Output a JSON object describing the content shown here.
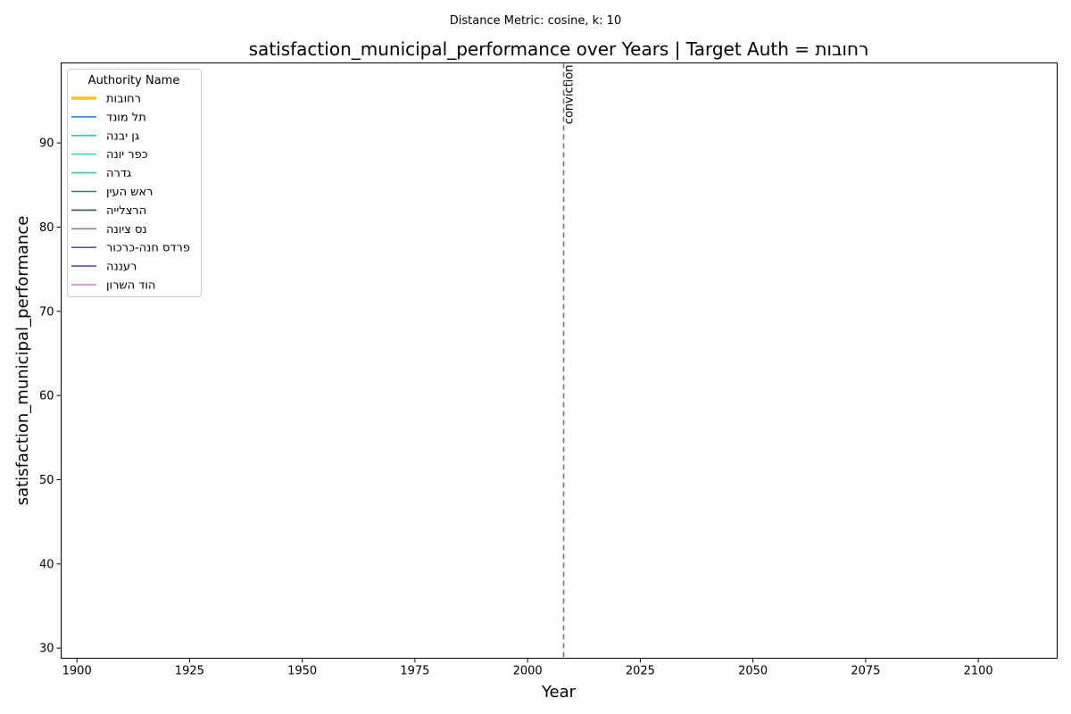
{
  "figure": {
    "suptitle": "Distance Metric: cosine, k: 10"
  },
  "chart_data": {
    "type": "line",
    "title": "satisfaction_municipal_performance over Years | Target Auth = רחובות",
    "xlabel": "Year",
    "ylabel": "satisfaction_municipal_performance",
    "xlim": [
      1896.5,
      2117.5
    ],
    "ylim": [
      28.8,
      99.5
    ],
    "xticks": [
      1900,
      1925,
      1950,
      1975,
      2000,
      2025,
      2050,
      2075,
      2100
    ],
    "yticks": [
      30,
      40,
      50,
      60,
      70,
      80,
      90
    ],
    "grid": false,
    "legend_title": "Authority Name",
    "legend_position": "top-left",
    "series": [
      {
        "name": "רחובות",
        "color": "#f2c41c",
        "emphasis": true,
        "x": [],
        "y": []
      },
      {
        "name": "תל מונד",
        "color": "#1e88e5",
        "x": [],
        "y": []
      },
      {
        "name": "גן יבנה",
        "color": "#26c6da",
        "x": [],
        "y": []
      },
      {
        "name": "כפר יונה",
        "color": "#2ee6c6",
        "x": [],
        "y": []
      },
      {
        "name": "גדרה",
        "color": "#3cc99a",
        "x": [],
        "y": []
      },
      {
        "name": "ראש העין",
        "color": "#2e7d5b",
        "x": [],
        "y": []
      },
      {
        "name": "הרצלייה",
        "color": "#2f5a48",
        "x": [],
        "y": []
      },
      {
        "name": "נס ציונה",
        "color": "#7a8a86",
        "x": [],
        "y": []
      },
      {
        "name": "פרדס חנה-כרכור",
        "color": "#5c5caa",
        "x": [],
        "y": []
      },
      {
        "name": "רעננה",
        "color": "#7b3fa6",
        "x": [],
        "y": []
      },
      {
        "name": "הוד השרון",
        "color": "#d577d6",
        "x": [],
        "y": []
      }
    ],
    "annotations": [
      {
        "type": "vline",
        "x": 2008,
        "label": "conviction",
        "style": "dashed",
        "color": "#777777"
      }
    ]
  }
}
